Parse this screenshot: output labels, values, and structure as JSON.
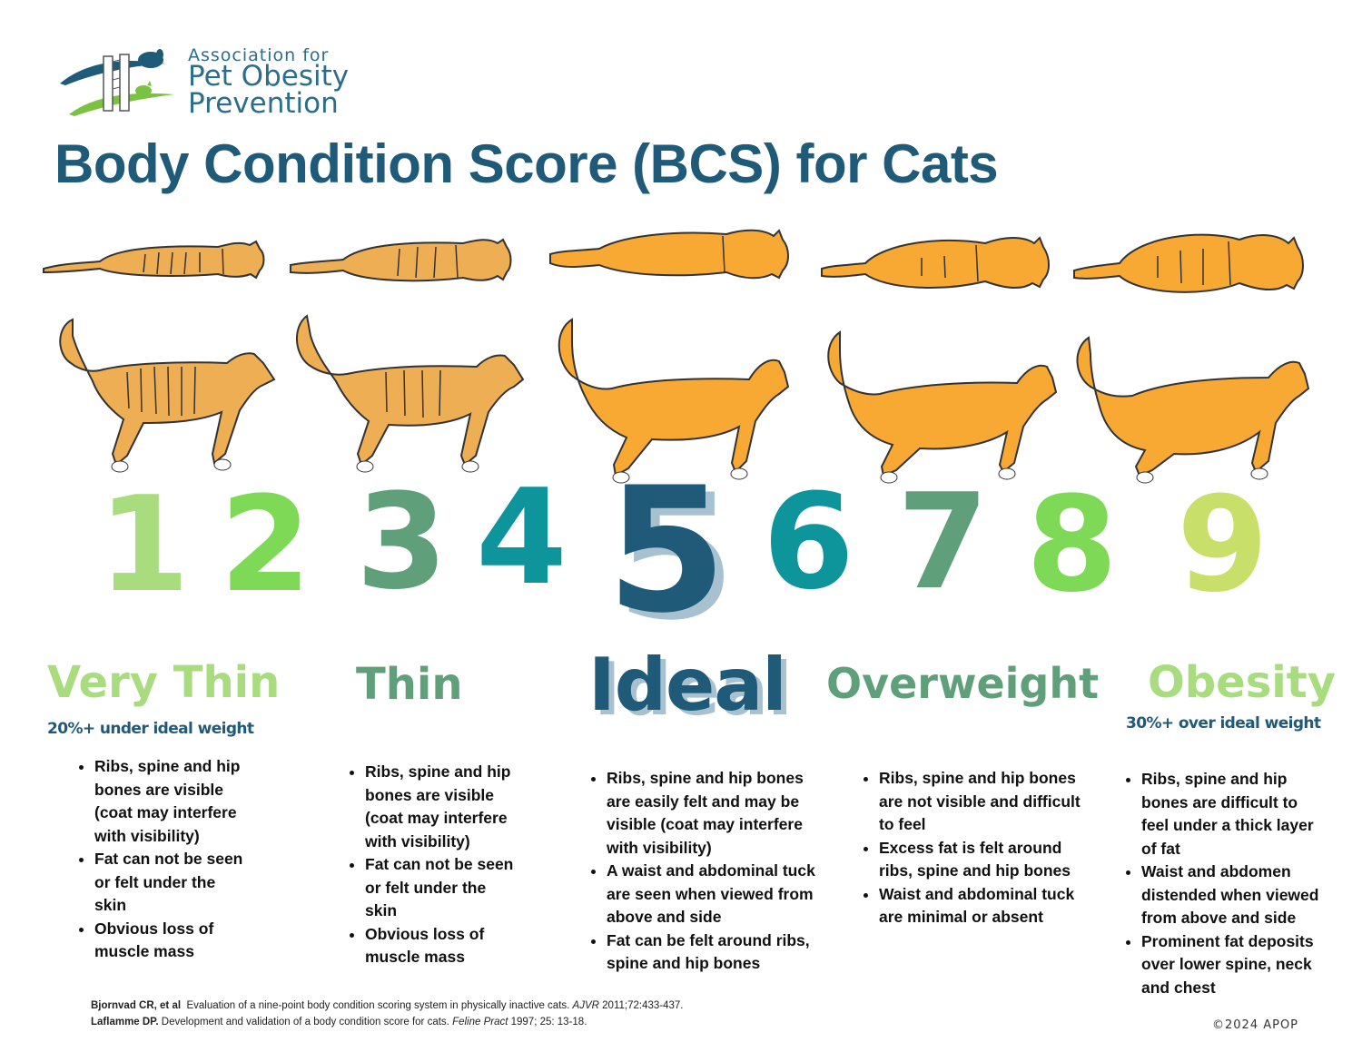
{
  "logo": {
    "line1": "Association for",
    "line2": "Pet Obesity",
    "line3": "Prevention",
    "icon": "dog-cat-tape-measure-logo"
  },
  "title": "Body Condition Score (BCS) for Cats",
  "colors": {
    "title": "#1f5a78",
    "cat_fill": "#f7a934",
    "cat_fill_thin": "#eeae53",
    "light_green": "#a8dc7e",
    "bright_green": "#7ed957",
    "sage_green": "#5fa07a",
    "teal": "#0e959b",
    "navy": "#1f5a78",
    "yellow_green": "#c8e06a"
  },
  "scores": [
    {
      "value": "1",
      "color": "#a8dc7e"
    },
    {
      "value": "2",
      "color": "#7ed957"
    },
    {
      "value": "3",
      "color": "#5fa07a"
    },
    {
      "value": "4",
      "color": "#0e959b"
    },
    {
      "value": "5",
      "color": "#1f5a78"
    },
    {
      "value": "6",
      "color": "#0e959b"
    },
    {
      "value": "7",
      "color": "#5fa07a"
    },
    {
      "value": "8",
      "color": "#7ed957"
    },
    {
      "value": "9",
      "color": "#c8e06a"
    }
  ],
  "categories": [
    {
      "label": "Very Thin",
      "sublabel": "20%+ under ideal weight",
      "bullets": [
        "Ribs, spine and hip bones are visible (coat may interfere with visibility)",
        "Fat can not be seen or felt under the skin",
        "Obvious loss of muscle mass"
      ]
    },
    {
      "label": "Thin",
      "bullets": [
        "Ribs, spine and hip bones are visible (coat may interfere with visibility)",
        "Fat can not be seen or felt under the skin",
        "Obvious loss of muscle mass"
      ]
    },
    {
      "label": "Ideal",
      "bullets": [
        "Ribs, spine and hip bones are easily felt and may be visible (coat may interfere with visibility)",
        "A waist and abdominal tuck are seen when viewed from above and side",
        "Fat can be felt around ribs, spine and hip bones"
      ]
    },
    {
      "label": "Overweight",
      "bullets": [
        "Ribs, spine and hip bones are not visible and difficult to feel",
        "Excess fat is felt around ribs, spine and hip bones",
        "Waist and abdominal tuck are minimal or absent"
      ]
    },
    {
      "label": "Obesity",
      "sublabel": "30%+ over ideal  weight",
      "bullets": [
        "Ribs, spine and hip bones are difficult to feel under a thick layer of fat",
        "Waist and abdomen distended when viewed from above and side",
        "Prominent fat deposits over lower spine, neck and chest"
      ]
    }
  ],
  "references": [
    {
      "authors": "Bjornvad CR, et al",
      "text": "Evaluation of a nine-point body condition scoring system in physically inactive cats.",
      "journal": "AJVR",
      "cite": "2011;72:433-437."
    },
    {
      "authors": "Laflamme DP.",
      "text": "Development and validation of a body condition score for cats.",
      "journal": "Feline Pract",
      "cite": "1997; 25: 13-18."
    }
  ],
  "copyright": "©2024 APOP"
}
